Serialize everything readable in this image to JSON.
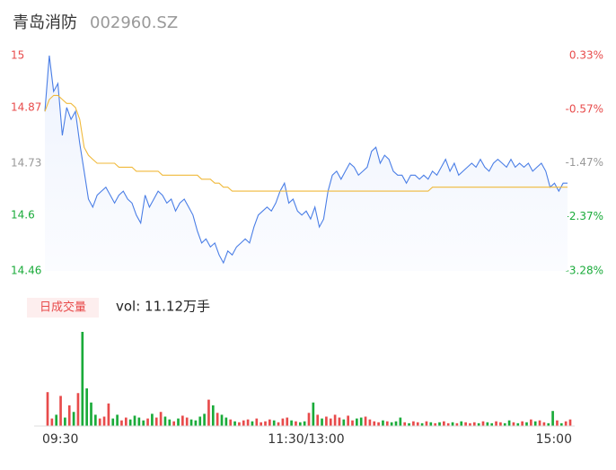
{
  "header": {
    "name": "青岛消防",
    "code": "002960.SZ"
  },
  "chart_data": [
    {
      "type": "line",
      "ylim": [
        14.46,
        15.0
      ],
      "yticks": [
        15.0,
        14.87,
        14.73,
        14.6,
        14.46
      ],
      "y2lim": [
        -3.28,
        0.33
      ],
      "y2ticks": [
        {
          "value": 0.33,
          "label": "0.33%"
        },
        {
          "value": -0.57,
          "label": "-0.57%"
        },
        {
          "value": -1.47,
          "label": "-1.47%"
        },
        {
          "value": -2.37,
          "label": "-2.37%"
        },
        {
          "value": -3.28,
          "label": "-3.28%"
        }
      ],
      "up_color": "#e84b4b",
      "down_color": "#1aab3a",
      "flat_color": "#999999",
      "series": [
        {
          "color": "#4a7ee6",
          "values": [
            14.86,
            15.0,
            14.91,
            14.93,
            14.8,
            14.87,
            14.84,
            14.86,
            14.78,
            14.71,
            14.64,
            14.62,
            14.65,
            14.66,
            14.67,
            14.65,
            14.63,
            14.65,
            14.66,
            14.64,
            14.63,
            14.6,
            14.58,
            14.65,
            14.62,
            14.64,
            14.66,
            14.65,
            14.63,
            14.64,
            14.61,
            14.63,
            14.64,
            14.62,
            14.6,
            14.56,
            14.53,
            14.54,
            14.52,
            14.53,
            14.5,
            14.48,
            14.51,
            14.5,
            14.52,
            14.53,
            14.54,
            14.53,
            14.57,
            14.6,
            14.61,
            14.62,
            14.61,
            14.63,
            14.66,
            14.68,
            14.63,
            14.64,
            14.61,
            14.6,
            14.61,
            14.59,
            14.62,
            14.57,
            14.59,
            14.66,
            14.7,
            14.71,
            14.69,
            14.71,
            14.73,
            14.72,
            14.7,
            14.71,
            14.72,
            14.76,
            14.77,
            14.73,
            14.75,
            14.74,
            14.71,
            14.7,
            14.7,
            14.68,
            14.7,
            14.7,
            14.69,
            14.7,
            14.69,
            14.71,
            14.7,
            14.72,
            14.74,
            14.71,
            14.73,
            14.7,
            14.71,
            14.72,
            14.73,
            14.72,
            14.74,
            14.72,
            14.71,
            14.73,
            14.74,
            14.73,
            14.72,
            14.74,
            14.72,
            14.73,
            14.72,
            14.73,
            14.71,
            14.72,
            14.73,
            14.71,
            14.67,
            14.68,
            14.66,
            14.68,
            14.68
          ]
        },
        {
          "color": "#f0b93a",
          "values": [
            14.86,
            14.89,
            14.9,
            14.9,
            14.89,
            14.88,
            14.88,
            14.87,
            14.84,
            14.77,
            14.75,
            14.74,
            14.73,
            14.73,
            14.73,
            14.73,
            14.73,
            14.72,
            14.72,
            14.72,
            14.72,
            14.71,
            14.71,
            14.71,
            14.71,
            14.71,
            14.71,
            14.7,
            14.7,
            14.7,
            14.7,
            14.7,
            14.7,
            14.7,
            14.7,
            14.7,
            14.69,
            14.69,
            14.69,
            14.68,
            14.68,
            14.67,
            14.67,
            14.66,
            14.66,
            14.66,
            14.66,
            14.66,
            14.66,
            14.66,
            14.66,
            14.66,
            14.66,
            14.66,
            14.66,
            14.66,
            14.66,
            14.66,
            14.66,
            14.66,
            14.66,
            14.66,
            14.66,
            14.66,
            14.66,
            14.66,
            14.66,
            14.66,
            14.66,
            14.66,
            14.66,
            14.66,
            14.66,
            14.66,
            14.66,
            14.66,
            14.66,
            14.66,
            14.66,
            14.66,
            14.66,
            14.66,
            14.66,
            14.66,
            14.66,
            14.66,
            14.66,
            14.66,
            14.66,
            14.67,
            14.67,
            14.67,
            14.67,
            14.67,
            14.67,
            14.67,
            14.67,
            14.67,
            14.67,
            14.67,
            14.67,
            14.67,
            14.67,
            14.67,
            14.67,
            14.67,
            14.67,
            14.67,
            14.67,
            14.67,
            14.67,
            14.67,
            14.67,
            14.67,
            14.67,
            14.67,
            14.67,
            14.67,
            14.67,
            14.67,
            14.67
          ]
        }
      ]
    },
    {
      "type": "bar",
      "title": "日成交量",
      "subtitle": "vol: 11.12万手",
      "ylim": [
        0,
        10000
      ],
      "xticks": [
        {
          "value": 0,
          "label": "09:30"
        },
        {
          "value": 60,
          "label": "11:30/13:00"
        },
        {
          "value": 120,
          "label": "15:00"
        }
      ],
      "values": [
        3600,
        800,
        1200,
        3200,
        900,
        2200,
        1500,
        3500,
        10000,
        4000,
        2500,
        1200,
        800,
        1000,
        2400,
        800,
        1200,
        600,
        900,
        700,
        1100,
        900,
        600,
        800,
        1300,
        900,
        1500,
        1000,
        700,
        500,
        800,
        1100,
        900,
        700,
        600,
        1000,
        1300,
        2800,
        2200,
        1400,
        1200,
        900,
        700,
        500,
        400,
        600,
        700,
        500,
        800,
        400,
        500,
        700,
        600,
        400,
        800,
        900,
        600,
        500,
        400,
        500,
        1400,
        2500,
        1200,
        800,
        1000,
        800,
        1200,
        900,
        700,
        1100,
        600,
        800,
        900,
        1000,
        700,
        500,
        400,
        600,
        500,
        400,
        500,
        900,
        400,
        300,
        500,
        400,
        300,
        500,
        400,
        300,
        400,
        500,
        300,
        400,
        300,
        500,
        400,
        300,
        400,
        300,
        500,
        400,
        300,
        500,
        400,
        300,
        600,
        400,
        300,
        500,
        400,
        700,
        500,
        600,
        400,
        300,
        1600,
        600,
        300,
        500,
        700
      ]
    }
  ]
}
